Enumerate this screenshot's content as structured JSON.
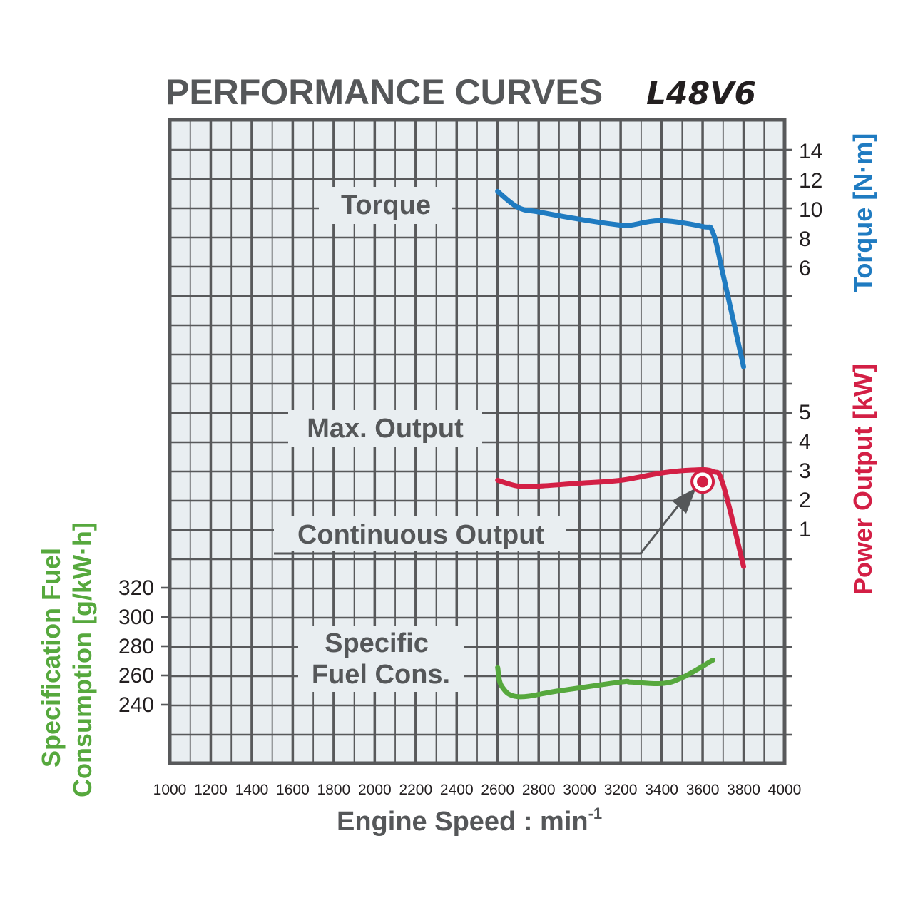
{
  "title": {
    "main": "PERFORMANCE CURVES",
    "model": "L48V6"
  },
  "colors": {
    "torque": "#1f7bc1",
    "power": "#d31f45",
    "fuel": "#56a83d",
    "grid": "#58595b",
    "plot_bg": "#e9eef1",
    "text_gray": "#555759",
    "arrow": "#555759"
  },
  "chart_data": {
    "type": "line",
    "xlabel": "Engine Speed : min",
    "xlabel_superscript": "-1",
    "xlim": [
      1000,
      4000
    ],
    "x_ticks": [
      "1000",
      "1200",
      "1400",
      "1600",
      "1800",
      "2000",
      "2200",
      "2400",
      "2600",
      "2800",
      "3000",
      "3200",
      "3400",
      "3600",
      "3800",
      "4000"
    ],
    "grid": true,
    "axes": {
      "torque": {
        "label": "Torque [N·m]",
        "side": "right",
        "ticks": [
          "14",
          "12",
          "10",
          "8",
          "6"
        ]
      },
      "power": {
        "label": "Power Output [kW]",
        "side": "right",
        "ticks": [
          "5",
          "4",
          "3",
          "2",
          "1"
        ]
      },
      "fuel": {
        "label_line1": "Specification Fuel",
        "label_line2": "Consumption [g/kW·h]",
        "side": "left",
        "ticks": [
          "320",
          "300",
          "280",
          "260",
          "240"
        ]
      }
    },
    "series": [
      {
        "name": "Torque",
        "axis": "torque",
        "x": [
          2600,
          2700,
          2800,
          3000,
          3200,
          3250,
          3400,
          3600,
          3650,
          3700,
          3800
        ],
        "y": [
          11.2,
          10.1,
          9.8,
          9.3,
          8.9,
          8.9,
          9.2,
          8.8,
          8.4,
          5.5,
          -0.8
        ]
      },
      {
        "name": "Max. Output",
        "axis": "power",
        "x": [
          2600,
          2700,
          2800,
          3000,
          3200,
          3400,
          3550,
          3650,
          3700,
          3800
        ],
        "y": [
          2.65,
          2.45,
          2.45,
          2.55,
          2.65,
          2.9,
          3.0,
          2.95,
          2.5,
          -0.3
        ]
      },
      {
        "name": "Specific Fuel Cons.",
        "axis": "fuel",
        "x": [
          2600,
          2620,
          2700,
          2900,
          3200,
          3250,
          3400,
          3500,
          3650
        ],
        "y": [
          265,
          252,
          245,
          249,
          255,
          255,
          254,
          258,
          270
        ]
      }
    ],
    "annotations": {
      "torque_label": "Torque",
      "max_output_label": "Max. Output",
      "continuous_output_label": "Continuous Output",
      "continuous_point": {
        "x": 3600,
        "y": 2.6
      },
      "fuel_label_line1": "Specific",
      "fuel_label_line2": "Fuel Cons."
    }
  }
}
